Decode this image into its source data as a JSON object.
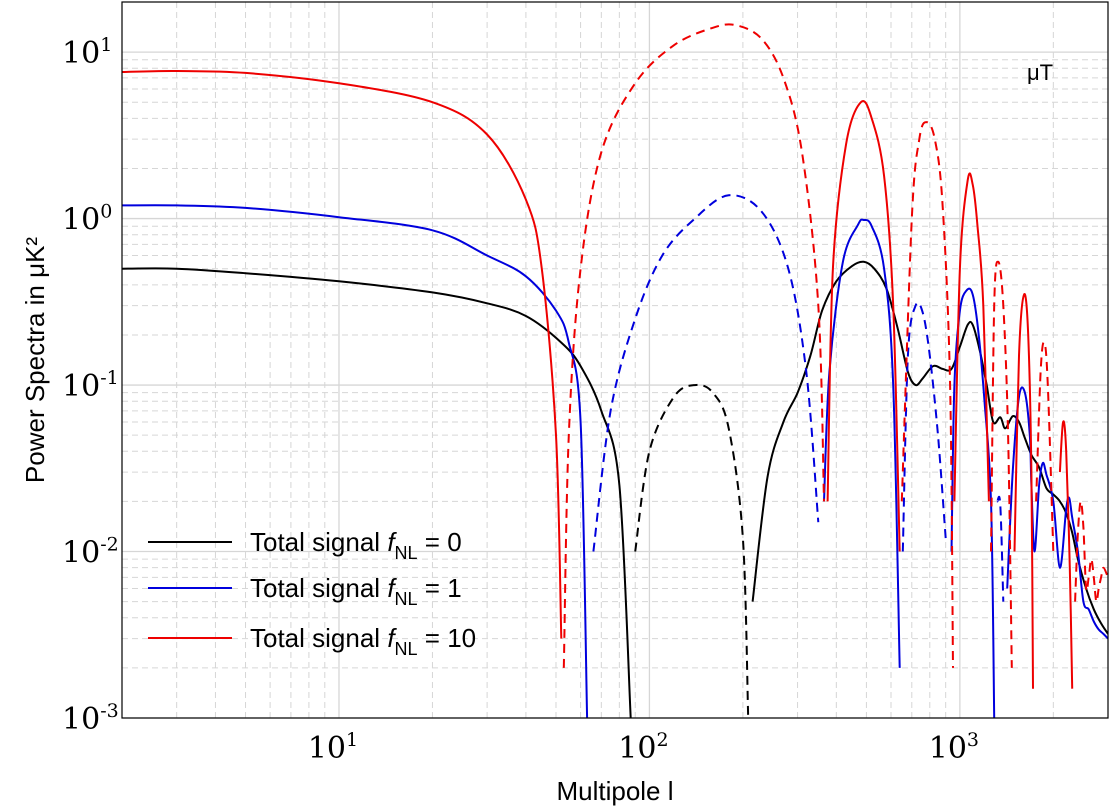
{
  "chart_data": {
    "type": "line",
    "xlabel": "Multipole l",
    "ylabel": "Power Spectra in μK²",
    "annotation": "μT",
    "x_scale": "log",
    "y_scale": "log",
    "xlim": [
      2,
      3000
    ],
    "ylim": [
      0.001,
      20
    ],
    "grid": true,
    "legend_position": "bottom-left",
    "dashed_meaning": "negative values",
    "x_ticks": [
      {
        "value": 10,
        "base": "10",
        "exp": "1"
      },
      {
        "value": 100,
        "base": "10",
        "exp": "2"
      },
      {
        "value": 1000,
        "base": "10",
        "exp": "3"
      }
    ],
    "y_ticks": [
      {
        "value": 0.001,
        "base": "10",
        "exp": "-3"
      },
      {
        "value": 0.01,
        "base": "10",
        "exp": "-2"
      },
      {
        "value": 0.1,
        "base": "10",
        "exp": "-1"
      },
      {
        "value": 1,
        "base": "10",
        "exp": "0"
      },
      {
        "value": 10,
        "base": "10",
        "exp": "1"
      }
    ],
    "series": [
      {
        "name": "Total signal f_NL = 0",
        "legend_prefix": "Total signal ",
        "legend_var": "f",
        "legend_sub": "NL",
        "legend_suffix": " = 0",
        "color": "#000000",
        "x": [
          2,
          3,
          5,
          10,
          20,
          30,
          40,
          52,
          60,
          70,
          80,
          87,
          90,
          100,
          120,
          140,
          160,
          180,
          200,
          208,
          215,
          240,
          270,
          300,
          330,
          360,
          400,
          450,
          490,
          530,
          580,
          630,
          680,
          720,
          760,
          820,
          880,
          940,
          1000,
          1060,
          1100,
          1160,
          1220,
          1280,
          1350,
          1400,
          1480,
          1550,
          1620,
          1700,
          1800,
          1900,
          2000,
          2100,
          2200,
          2300,
          2400,
          2550,
          2700,
          2850,
          3000
        ],
        "y": [
          0.5,
          0.5,
          0.47,
          0.42,
          0.36,
          0.31,
          0.26,
          0.18,
          0.13,
          0.07,
          0.025,
          0.001,
          -0.01,
          -0.04,
          -0.085,
          -0.1,
          -0.09,
          -0.055,
          -0.012,
          -0.001,
          0.005,
          0.028,
          0.06,
          0.09,
          0.15,
          0.28,
          0.42,
          0.52,
          0.55,
          0.5,
          0.38,
          0.22,
          0.12,
          0.1,
          0.11,
          0.13,
          0.125,
          0.125,
          0.17,
          0.23,
          0.23,
          0.16,
          0.1,
          0.06,
          0.064,
          0.055,
          0.065,
          0.06,
          0.048,
          0.038,
          0.032,
          0.024,
          0.022,
          0.02,
          0.017,
          0.013,
          0.009,
          0.006,
          0.0045,
          0.0037,
          0.0032
        ]
      },
      {
        "name": "Total signal f_NL = 1",
        "legend_prefix": "Total signal ",
        "legend_var": "f",
        "legend_sub": "NL",
        "legend_suffix": " = 1",
        "color": "#0000dd",
        "x": [
          2,
          3,
          5,
          10,
          20,
          30,
          40,
          50,
          55,
          60,
          63,
          66,
          75,
          90,
          110,
          140,
          180,
          230,
          280,
          320,
          350,
          365,
          380,
          420,
          470,
          490,
          520,
          570,
          610,
          640,
          655,
          680,
          720,
          760,
          800,
          850,
          900,
          940,
          960,
          1000,
          1050,
          1100,
          1150,
          1200,
          1260,
          1290,
          1320,
          1350,
          1380,
          1420,
          1480,
          1550,
          1620,
          1680,
          1700,
          1740,
          1800,
          1850,
          1900,
          2000,
          2100,
          2200,
          2250,
          2300,
          2400,
          2500,
          2600,
          2700,
          2800,
          2900,
          3000
        ],
        "y": [
          1.2,
          1.2,
          1.16,
          1.02,
          0.85,
          0.6,
          0.45,
          0.28,
          0.18,
          0.06,
          0.001,
          -0.01,
          -0.07,
          -0.25,
          -0.6,
          -1.0,
          -1.38,
          -1.1,
          -0.5,
          -0.12,
          -0.015,
          0.02,
          0.12,
          0.55,
          0.92,
          0.98,
          0.9,
          0.5,
          0.1,
          0.002,
          -0.01,
          -0.15,
          -0.3,
          -0.27,
          -0.15,
          -0.05,
          -0.012,
          0.01,
          0.1,
          0.28,
          0.37,
          0.35,
          0.2,
          0.08,
          0.02,
          0.001,
          -0.02,
          -0.019,
          -0.005,
          0.006,
          0.03,
          0.085,
          0.09,
          0.05,
          0.025,
          0.01,
          0.025,
          0.034,
          0.029,
          0.02,
          0.008,
          0.018,
          0.021,
          0.016,
          0.01,
          0.005,
          0.0045,
          0.0038,
          0.0034,
          0.0032,
          0.003
        ]
      },
      {
        "name": "Total signal f_NL = 10",
        "legend_prefix": "Total signal ",
        "legend_var": "f",
        "legend_sub": "NL",
        "legend_suffix": " = 10",
        "color": "#ee0000",
        "x": [
          2,
          3,
          5,
          10,
          20,
          30,
          40,
          45,
          50,
          52,
          53,
          55,
          60,
          70,
          90,
          120,
          160,
          190,
          230,
          270,
          310,
          350,
          365,
          375,
          390,
          430,
          480,
          520,
          570,
          610,
          640,
          650,
          700,
          740,
          780,
          830,
          880,
          930,
          950,
          960,
          1000,
          1060,
          1100,
          1140,
          1190,
          1240,
          1260,
          1290,
          1330,
          1380,
          1430,
          1470,
          1500,
          1550,
          1610,
          1660,
          1700,
          1720,
          1760,
          1820,
          1870,
          1920,
          2000,
          2100,
          2150,
          2200,
          2260,
          2300,
          2350,
          2400,
          2450,
          2500,
          2550,
          2600,
          2650,
          2700,
          2750,
          2800,
          2850,
          2900,
          3000
        ],
        "y": [
          7.6,
          7.7,
          7.5,
          6.5,
          5.0,
          3.2,
          1.3,
          0.5,
          0.05,
          0.003,
          -0.002,
          -0.05,
          -0.5,
          -2.5,
          -6.5,
          -11.0,
          -14.0,
          -14.5,
          -12.0,
          -7.0,
          -2.5,
          -0.3,
          -0.02,
          0.02,
          0.5,
          2.8,
          5.0,
          4.0,
          1.8,
          0.3,
          0.01,
          -0.02,
          -1.0,
          -3.0,
          -3.8,
          -3.0,
          -1.2,
          -0.1,
          -0.002,
          0.02,
          0.5,
          1.7,
          1.6,
          0.9,
          0.3,
          0.02,
          -0.01,
          -0.3,
          -0.55,
          -0.3,
          -0.05,
          -0.002,
          0.01,
          0.15,
          0.35,
          0.2,
          0.03,
          0.0015,
          -0.02,
          -0.12,
          -0.18,
          -0.1,
          -0.01,
          0.03,
          0.06,
          0.04,
          0.008,
          0.0015,
          -0.005,
          -0.013,
          -0.02,
          -0.014,
          -0.006,
          -0.007,
          -0.009,
          -0.007,
          -0.005,
          -0.006,
          -0.007,
          -0.008,
          -0.007
        ]
      }
    ]
  }
}
